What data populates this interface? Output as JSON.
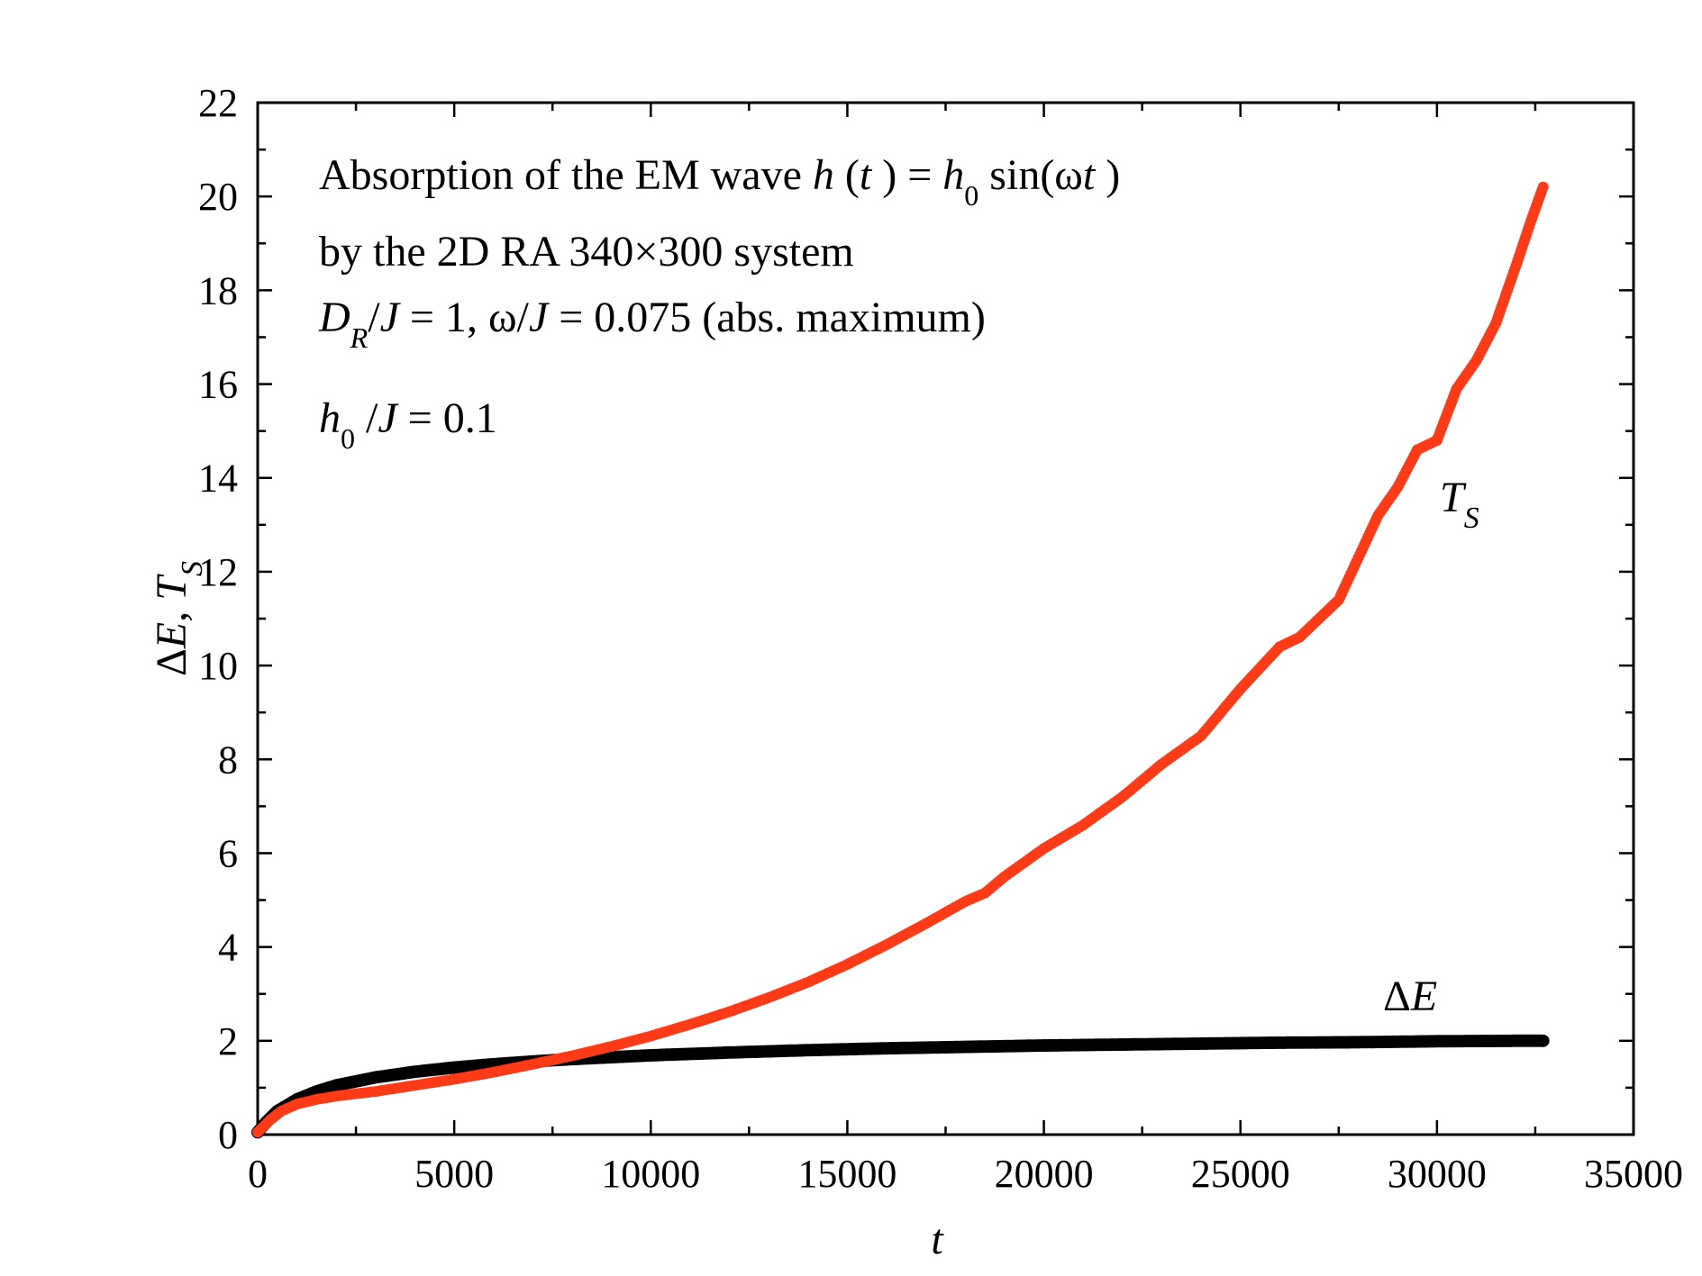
{
  "chart_data": {
    "type": "scatter",
    "title": "",
    "xlabel": "t",
    "ylabel_parts": {
      "delta": "Δ",
      "e": "E",
      "sep": ", ",
      "t": "T",
      "sub": "S"
    },
    "xlim": [
      0,
      35000
    ],
    "ylim": [
      0,
      22
    ],
    "x_ticks": [
      0,
      5000,
      10000,
      15000,
      20000,
      25000,
      30000,
      35000
    ],
    "x_tick_labels": [
      "0",
      "5000",
      "10000",
      "15000",
      "20000",
      "25000",
      "30000",
      "35000"
    ],
    "y_ticks": [
      0,
      2,
      4,
      6,
      8,
      10,
      12,
      14,
      16,
      18,
      20,
      22
    ],
    "y_tick_labels": [
      "0",
      "2",
      "4",
      "6",
      "8",
      "10",
      "12",
      "14",
      "16",
      "18",
      "20",
      "22"
    ],
    "annotations": {
      "line1": {
        "prefix": "Absorption of the EM wave ",
        "h": "h",
        "open": " (",
        "t": "t",
        "mid": " ) = ",
        "h0": "h",
        "h0_sub": "0",
        "sin": " sin(ω",
        "t2": "t",
        "close": " )"
      },
      "line2": "by the 2D RA 340×300 system",
      "line3": {
        "d": "D",
        "d_sub": "R",
        "slash1": "/",
        "j1": "J",
        "mid": "  = 1, ω/",
        "j2": "J",
        "tail": "  = 0.075 (abs. maximum)"
      },
      "line4": {
        "h": "h",
        "sub": "0",
        "slash": " /",
        "j": "J",
        "tail": " = 0.1"
      }
    },
    "series": [
      {
        "name": "ΔE",
        "label_parts": {
          "delta": "Δ",
          "e": "E"
        },
        "color": "#000000",
        "x": [
          0,
          200,
          500,
          1000,
          1500,
          2000,
          3000,
          4000,
          5000,
          6000,
          7000,
          8000,
          9000,
          10000,
          12000,
          14000,
          16000,
          18000,
          20000,
          22000,
          24000,
          26000,
          28000,
          30000,
          32000,
          32700
        ],
        "y": [
          0.05,
          0.25,
          0.5,
          0.75,
          0.92,
          1.05,
          1.22,
          1.34,
          1.43,
          1.5,
          1.56,
          1.61,
          1.65,
          1.69,
          1.75,
          1.8,
          1.84,
          1.87,
          1.9,
          1.92,
          1.94,
          1.96,
          1.97,
          1.99,
          2.0,
          2.0
        ]
      },
      {
        "name": "T_S",
        "label_parts": {
          "t": "T",
          "sub": "S"
        },
        "color": "#ff3a17",
        "x": [
          0,
          300,
          600,
          1000,
          1500,
          2000,
          3000,
          4000,
          5000,
          6000,
          7000,
          8000,
          9000,
          10000,
          11000,
          12000,
          13000,
          14000,
          15000,
          16000,
          17000,
          18000,
          18500,
          19000,
          20000,
          21000,
          22000,
          23000,
          24000,
          24500,
          25000,
          26000,
          26500,
          27000,
          27500,
          28000,
          28500,
          29000,
          29500,
          30000,
          30500,
          31000,
          31500,
          32000,
          32400,
          32700
        ],
        "y": [
          0.05,
          0.3,
          0.5,
          0.65,
          0.75,
          0.82,
          0.92,
          1.05,
          1.18,
          1.33,
          1.5,
          1.68,
          1.88,
          2.1,
          2.35,
          2.62,
          2.92,
          3.25,
          3.63,
          4.05,
          4.5,
          4.97,
          5.15,
          5.5,
          6.1,
          6.6,
          7.2,
          7.9,
          8.5,
          9.0,
          9.5,
          10.4,
          10.6,
          11.0,
          11.4,
          12.3,
          13.2,
          13.8,
          14.6,
          14.8,
          15.9,
          16.5,
          17.3,
          18.5,
          19.5,
          20.2
        ]
      }
    ]
  }
}
